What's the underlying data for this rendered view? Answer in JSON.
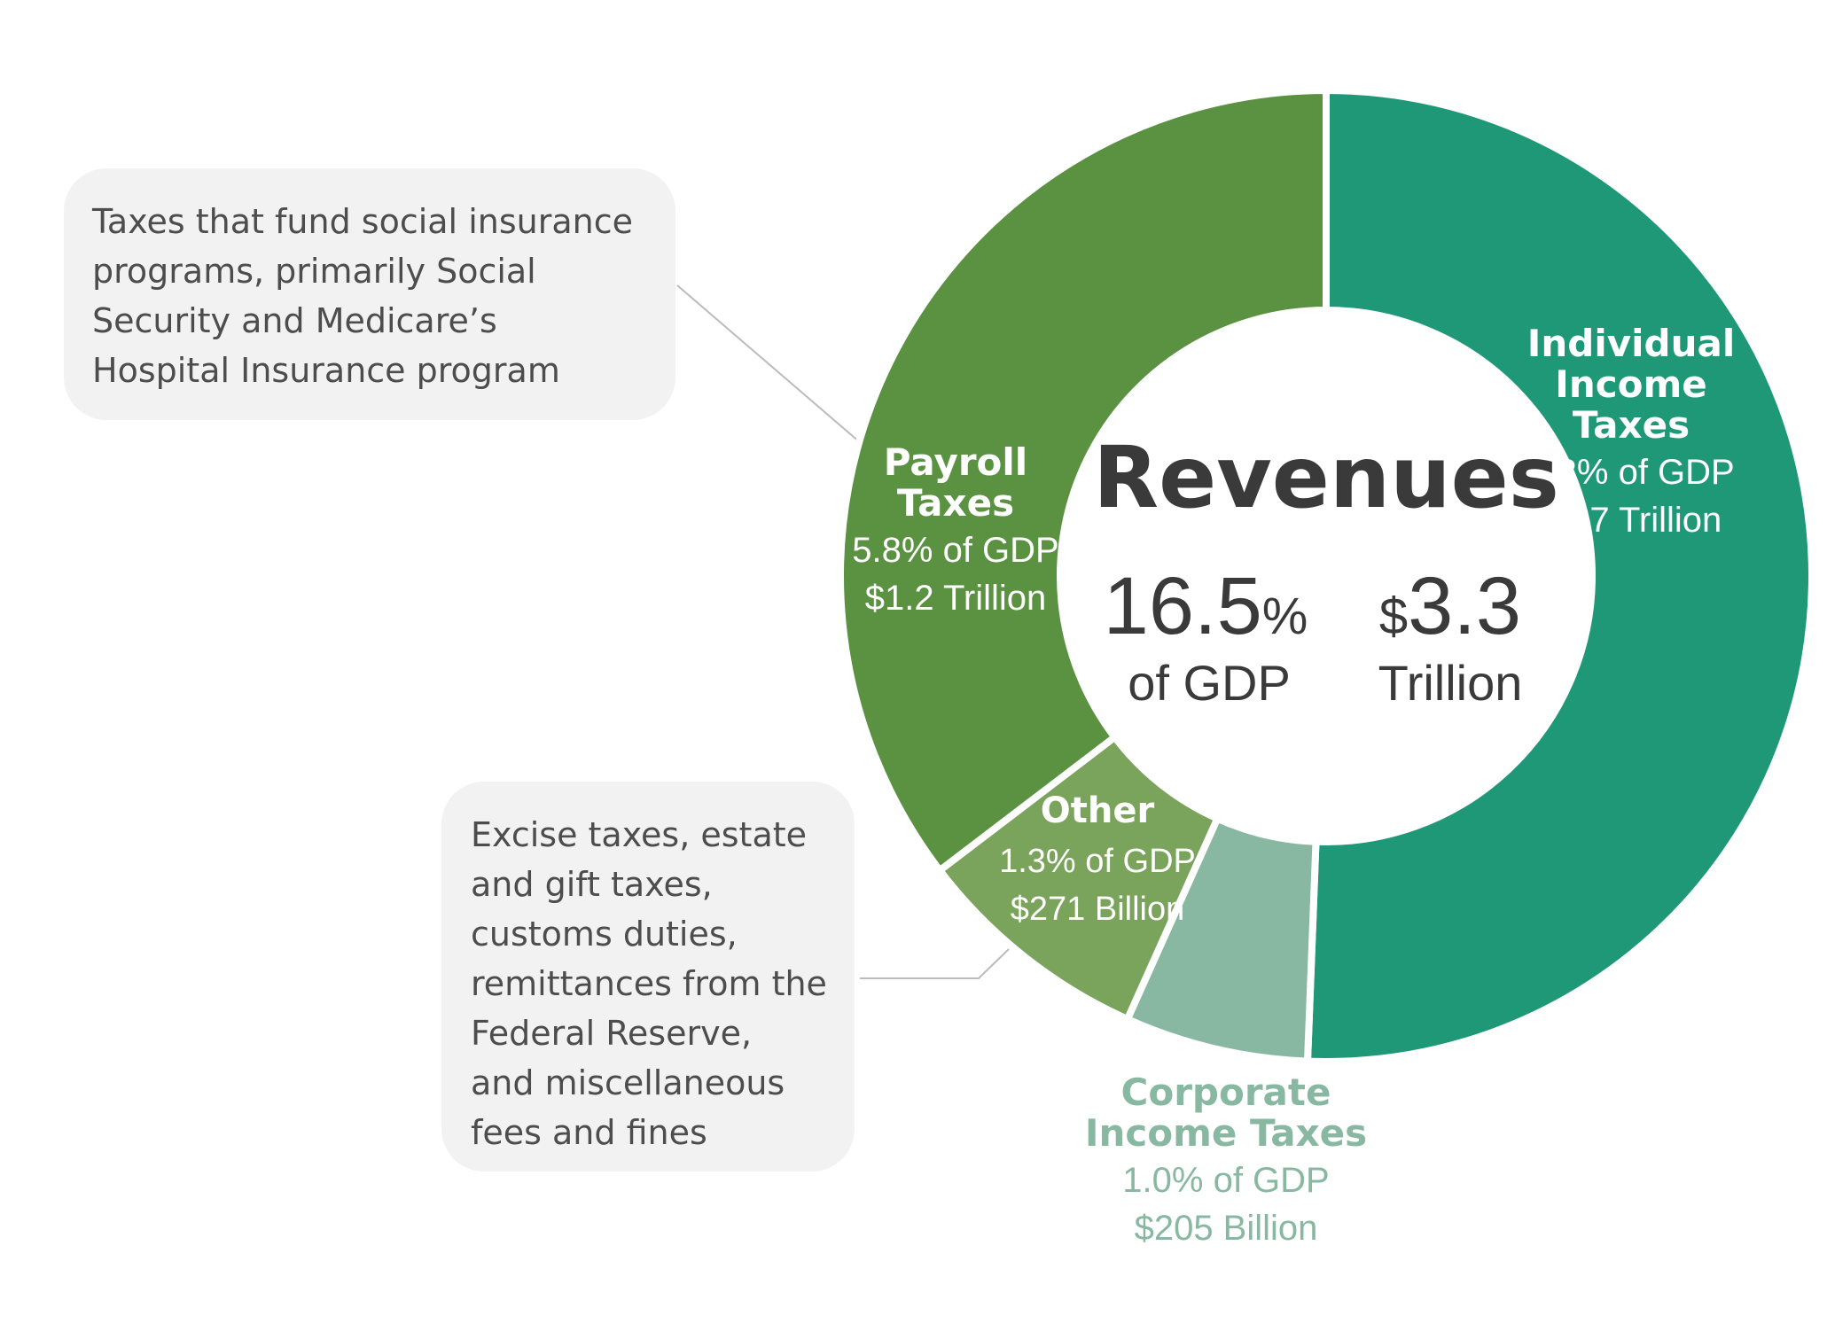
{
  "chart_data": {
    "type": "pie",
    "variant": "donut",
    "title": "Revenues",
    "center": {
      "pct_value": "16.5",
      "pct_unit": "%",
      "pct_label": "of GDP",
      "amount_prefix": "$",
      "amount_value": "3.3",
      "amount_label": "Trillion"
    },
    "slices": [
      {
        "key": "individual",
        "name_lines": [
          "Individual",
          "Income",
          "Taxes"
        ],
        "pct_gdp_text": "8.3% of GDP",
        "amount_text": "$1.7 Trillion",
        "value": 8.3,
        "color": "#1f9878",
        "label_color": "#ffffff"
      },
      {
        "key": "corporate",
        "name_lines": [
          "Corporate",
          "Income Taxes"
        ],
        "pct_gdp_text": "1.0% of GDP",
        "amount_text": "$205 Billion",
        "value": 1.0,
        "color": "#88b8a1",
        "label_color": "#88b8a1"
      },
      {
        "key": "other",
        "name_lines": [
          "Other"
        ],
        "pct_gdp_text": "1.3% of GDP",
        "amount_text": "$271 Billion",
        "value": 1.3,
        "color": "#7aa35c",
        "label_color": "#ffffff"
      },
      {
        "key": "payroll",
        "name_lines": [
          "Payroll",
          "Taxes"
        ],
        "pct_gdp_text": "5.8% of GDP",
        "amount_text": "$1.2 Trillion",
        "value": 5.8,
        "color": "#5a9241",
        "label_color": "#ffffff"
      }
    ],
    "callouts": {
      "payroll": [
        "Taxes that fund social insurance",
        "programs, primarily Social",
        "Security and Medicare’s",
        "Hospital Insurance program"
      ],
      "other": [
        "Excise taxes, estate",
        "and gift taxes,",
        "customs duties,",
        "remittances from the",
        "Federal Reserve,",
        "and miscellaneous",
        "fees and fines"
      ]
    },
    "colors": {
      "center_text": "#3a3a3a",
      "callout_bg": "#f2f2f2",
      "callout_text": "#4d4d4d",
      "leader_line": "#bbbbbb"
    }
  }
}
